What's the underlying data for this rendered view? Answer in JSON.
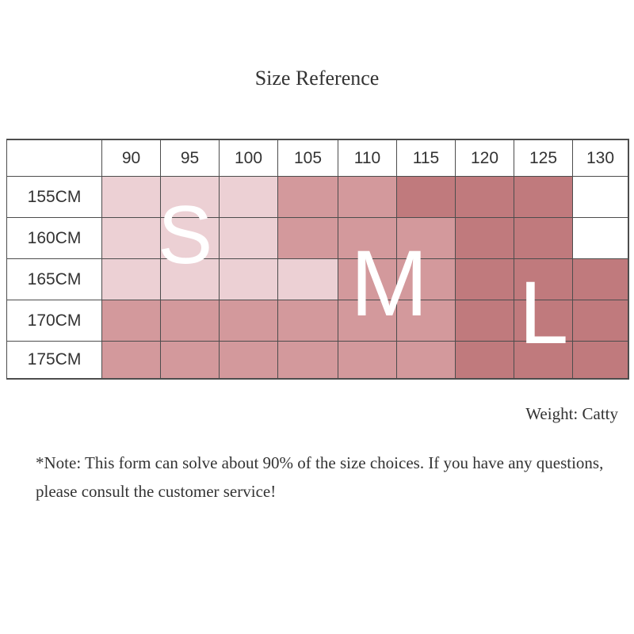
{
  "title": "Size Reference",
  "table": {
    "weight_columns": [
      "90",
      "95",
      "100",
      "105",
      "110",
      "115",
      "120",
      "125",
      "130"
    ],
    "height_rows": [
      "155CM",
      "160CM",
      "165CM",
      "170CM",
      "175CM"
    ],
    "size_grid": [
      [
        "S",
        "S",
        "S",
        "M",
        "M",
        "L",
        "L",
        "L",
        ""
      ],
      [
        "S",
        "S",
        "S",
        "M",
        "M",
        "M",
        "L",
        "L",
        ""
      ],
      [
        "S",
        "S",
        "S",
        "S",
        "M",
        "M",
        "L",
        "L",
        "L"
      ],
      [
        "M",
        "M",
        "M",
        "M",
        "M",
        "M",
        "L",
        "L",
        "L"
      ],
      [
        "M",
        "M",
        "M",
        "M",
        "M",
        "M",
        "L",
        "L",
        "L"
      ]
    ],
    "size_colors": {
      "S": "#ecd0d4",
      "M": "#d3999c",
      "L": "#c07a7d"
    },
    "size_labels": [
      "S",
      "M",
      "L"
    ]
  },
  "weight_unit": "Weight: Catty",
  "note": "*Note: This form can solve about 90% of the size choices. If you have any questions, please consult the customer service!"
}
